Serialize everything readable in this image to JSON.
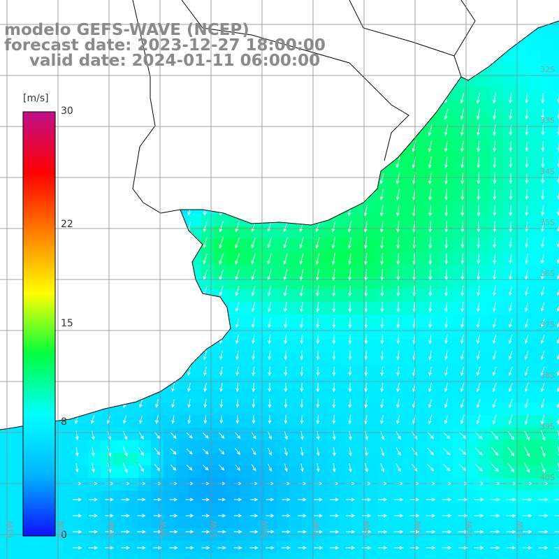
{
  "title": {
    "line1": "modelo GEFS-WAVE (NCEP)",
    "line2": "forecast date: 2023-12-27 18:00:00",
    "line3": "valid date: 2024-01-11 06:00:00"
  },
  "colorbar": {
    "unit": "[m/s]",
    "min": 0,
    "max": 30,
    "ticks": [
      {
        "value": 30,
        "label": "30"
      },
      {
        "value": 22,
        "label": "22"
      },
      {
        "value": 15,
        "label": "15"
      },
      {
        "value": 8,
        "label": "8"
      },
      {
        "value": 0,
        "label": "0"
      }
    ],
    "stops": [
      "#1010ff",
      "#00b4ff",
      "#00ffff",
      "#00ff40",
      "#ffff00",
      "#ff8000",
      "#ff0000",
      "#c0108a"
    ]
  },
  "map": {
    "lat_labels": [
      "32S",
      "33S",
      "34S",
      "35S",
      "36S",
      "37S",
      "38S",
      "39S",
      "40S"
    ],
    "lon_labels": [
      "61W",
      "60W",
      "59W",
      "58W",
      "57W",
      "56W",
      "55W",
      "54W",
      "53W",
      "52W",
      "51W"
    ],
    "land_color": "#ffffff",
    "coast_color": "#000000",
    "grid_color": "#888888",
    "arrow_color": "#ffffff"
  }
}
